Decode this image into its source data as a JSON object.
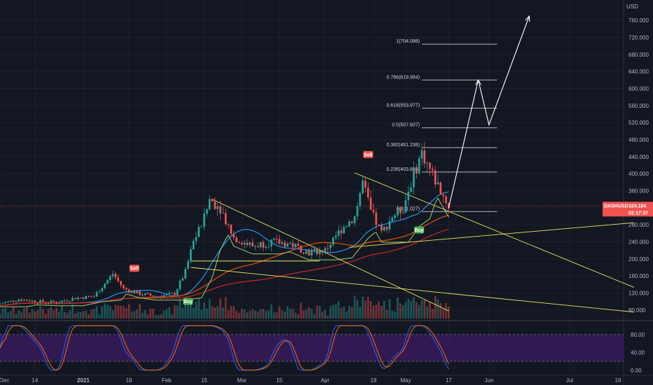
{
  "chart_data": {
    "type": "candlestick",
    "symbol": "DASHUSD",
    "currency": "USD",
    "last_price": "324.184",
    "countdown": "02:17:37",
    "price_axis": {
      "ticks": [
        "760.000",
        "720.000",
        "680.000",
        "640.000",
        "600.000",
        "560.000",
        "520.000",
        "480.000",
        "440.000",
        "400.000",
        "360.000",
        "320.000",
        "280.000",
        "240.000",
        "200.000",
        "160.000",
        "120.000",
        "80.000"
      ],
      "min": 60,
      "max": 775
    },
    "oscillator_axis": {
      "ticks": [
        "80.00",
        "40.00",
        "0.00"
      ],
      "min": -5,
      "max": 105,
      "band_upper": 80,
      "band_lower": 20
    },
    "time_axis": [
      "Dec",
      "14",
      "2021",
      "18",
      "Feb",
      "15",
      "Mar",
      "15",
      "Apr",
      "19",
      "May",
      "17",
      "Jun",
      "Jul",
      "19"
    ],
    "fib_levels": [
      {
        "ratio": 1,
        "price": 704.088,
        "label": "1(704.088)"
      },
      {
        "ratio": 0.786,
        "price": 619.994,
        "label": "0.786(619.994)"
      },
      {
        "ratio": 0.618,
        "price": 553.977,
        "label": "0.618(553.977)"
      },
      {
        "ratio": 0.5,
        "price": 507.607,
        "label": "0.5(507.607)"
      },
      {
        "ratio": 0.382,
        "price": 461.238,
        "label": "0.382(461.238)"
      },
      {
        "ratio": 0.236,
        "price": 403.866,
        "label": "0.236(403.866)"
      },
      {
        "ratio": 0,
        "price": 311.027,
        "label": "0(311.027)"
      }
    ],
    "signals": [
      {
        "label": "Sell"
      },
      {
        "label": "Buy"
      },
      {
        "label": "Sell"
      },
      {
        "label": "Buy"
      }
    ],
    "price_path": [
      {
        "t": "2020-12-01",
        "p": 95
      },
      {
        "t": "2020-12-08",
        "p": 105
      },
      {
        "t": "2020-12-15",
        "p": 100
      },
      {
        "t": "2020-12-22",
        "p": 98
      },
      {
        "t": "2020-12-29",
        "p": 108
      },
      {
        "t": "2021-01-05",
        "p": 112
      },
      {
        "t": "2021-01-12",
        "p": 165
      },
      {
        "t": "2021-01-16",
        "p": 130
      },
      {
        "t": "2021-01-22",
        "p": 118
      },
      {
        "t": "2021-01-28",
        "p": 112
      },
      {
        "t": "2021-02-04",
        "p": 118
      },
      {
        "t": "2021-02-08",
        "p": 170
      },
      {
        "t": "2021-02-11",
        "p": 240
      },
      {
        "t": "2021-02-15",
        "p": 295
      },
      {
        "t": "2021-02-17",
        "p": 340
      },
      {
        "t": "2021-02-21",
        "p": 320
      },
      {
        "t": "2021-02-26",
        "p": 250
      },
      {
        "t": "2021-03-05",
        "p": 230
      },
      {
        "t": "2021-03-12",
        "p": 240
      },
      {
        "t": "2021-03-19",
        "p": 235
      },
      {
        "t": "2021-03-26",
        "p": 215
      },
      {
        "t": "2021-04-01",
        "p": 220
      },
      {
        "t": "2021-04-07",
        "p": 270
      },
      {
        "t": "2021-04-12",
        "p": 300
      },
      {
        "t": "2021-04-15",
        "p": 380
      },
      {
        "t": "2021-04-18",
        "p": 310
      },
      {
        "t": "2021-04-22",
        "p": 260
      },
      {
        "t": "2021-04-26",
        "p": 300
      },
      {
        "t": "2021-04-30",
        "p": 320
      },
      {
        "t": "2021-05-04",
        "p": 400
      },
      {
        "t": "2021-05-07",
        "p": 450
      },
      {
        "t": "2021-05-10",
        "p": 410
      },
      {
        "t": "2021-05-14",
        "p": 360
      },
      {
        "t": "2021-05-17",
        "p": 324
      }
    ],
    "projection_path": [
      {
        "t": "2021-05-17",
        "p": 320
      },
      {
        "t": "2021-05-28",
        "p": 620
      },
      {
        "t": "2021-06-01",
        "p": 515
      },
      {
        "t": "2021-06-16",
        "p": 770
      }
    ],
    "colors": {
      "background": "#131722",
      "up": "#26a69a",
      "down": "#ef5350",
      "fib": "#b2b5be",
      "trendline": "#e8e85a",
      "ma_fast": "#2196f3",
      "ma_mid": "#e65100",
      "ma_slow": "#c62828",
      "stoch_k": "#2962ff",
      "stoch_d": "#ff6d00",
      "stoch_band": "#4a1c78",
      "support": "#9ccc65"
    }
  }
}
